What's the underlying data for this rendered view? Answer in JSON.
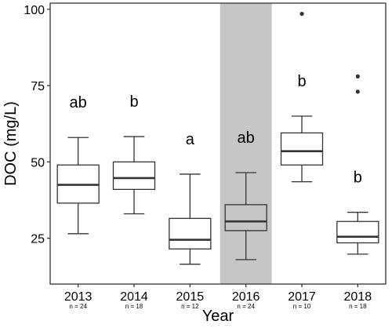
{
  "chart_data": {
    "type": "box",
    "xlabel": "Year",
    "ylabel": "DOC (mg/L)",
    "ylim": [
      10,
      102
    ],
    "yticks": [
      25,
      50,
      75,
      100
    ],
    "grid": false,
    "highlighted_category": "2016",
    "categories": [
      "2013",
      "2014",
      "2015",
      "2016",
      "2017",
      "2018"
    ],
    "sample_sizes": [
      "n = 24",
      "n = 18",
      "n = 12",
      "n = 24",
      "n = 10",
      "n = 18"
    ],
    "group_letters": [
      "ab",
      "b",
      "a",
      "ab",
      "b",
      "b"
    ],
    "boxes": [
      {
        "category": "2013",
        "whisker_low": 26.5,
        "q1": 36.5,
        "median": 42.5,
        "q3": 49.0,
        "whisker_high": 58.0,
        "outliers": []
      },
      {
        "category": "2014",
        "whisker_low": 33.0,
        "q1": 41.0,
        "median": 44.7,
        "q3": 50.0,
        "whisker_high": 58.3,
        "outliers": []
      },
      {
        "category": "2015",
        "whisker_low": 16.5,
        "q1": 21.5,
        "median": 24.5,
        "q3": 31.5,
        "whisker_high": 46.0,
        "outliers": []
      },
      {
        "category": "2016",
        "whisker_low": 18.0,
        "q1": 27.5,
        "median": 30.5,
        "q3": 36.0,
        "whisker_high": 46.5,
        "outliers": []
      },
      {
        "category": "2017",
        "whisker_low": 43.5,
        "q1": 49.0,
        "median": 53.5,
        "q3": 59.5,
        "whisker_high": 65.0,
        "outliers": [
          98.5
        ]
      },
      {
        "category": "2018",
        "whisker_low": 19.8,
        "q1": 23.5,
        "median": 25.5,
        "q3": 30.5,
        "whisker_high": 33.5,
        "outliers": [
          73.0,
          78.0
        ]
      }
    ]
  }
}
